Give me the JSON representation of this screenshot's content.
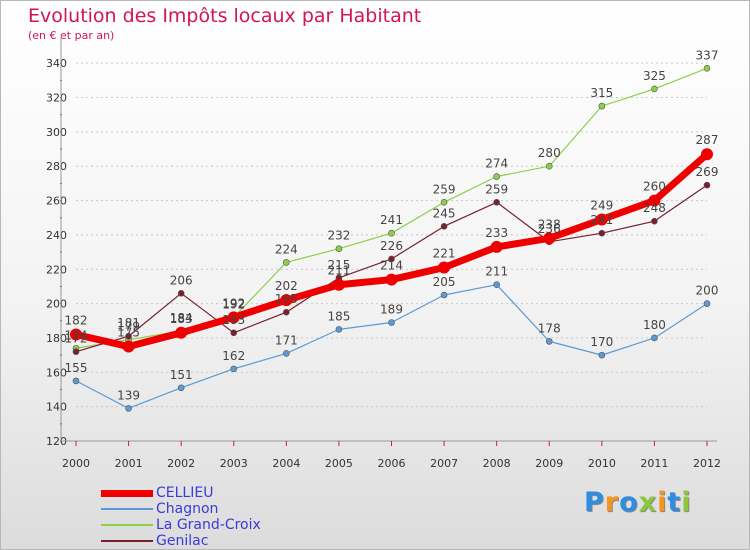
{
  "header": {
    "title": "Evolution des Impôts locaux par Habitant",
    "subtitle": "(en € et par an)"
  },
  "logo": {
    "text": "Proxiti",
    "colors": [
      "#2e8de0",
      "#f7941d",
      "#2e8de0",
      "#8dc63f",
      "#f7941d",
      "#2e8de0",
      "#8dc63f"
    ]
  },
  "chart_data": {
    "type": "line",
    "title": "Evolution des Impôts locaux par Habitant",
    "subtitle": "(en € et par an)",
    "x": [
      "2000",
      "2001",
      "2002",
      "2003",
      "2004",
      "2005",
      "2006",
      "2007",
      "2008",
      "2009",
      "2010",
      "2011",
      "2012"
    ],
    "ylim": [
      120,
      350
    ],
    "yticks": [
      120,
      140,
      160,
      180,
      200,
      220,
      240,
      260,
      280,
      300,
      320,
      340
    ],
    "grid": "horizontal-dashed",
    "legend": "bottom-left",
    "series": [
      {
        "name": "Chagnon",
        "color": "#5b9bd5",
        "values": [
          155,
          139,
          151,
          162,
          171,
          185,
          189,
          205,
          211,
          178,
          170,
          180,
          200
        ]
      },
      {
        "name": "La Grand-Croix",
        "color": "#8cd048",
        "values": [
          174,
          179,
          184,
          192,
          224,
          232,
          241,
          259,
          274,
          280,
          315,
          325,
          337
        ]
      },
      {
        "name": "Genilac",
        "color": "#7a1f2e",
        "values": [
          172,
          181,
          206,
          183,
          195,
          215,
          226,
          245,
          259,
          236,
          241,
          248,
          269
        ]
      },
      {
        "name": "CELLIEU",
        "color": "#ee0000",
        "values": [
          182,
          175,
          183,
          192,
          202,
          211,
          214,
          221,
          233,
          238,
          249,
          260,
          287
        ]
      }
    ],
    "legend_order": [
      "CELLIEU",
      "Chagnon",
      "La Grand-Croix",
      "Genilac"
    ]
  }
}
